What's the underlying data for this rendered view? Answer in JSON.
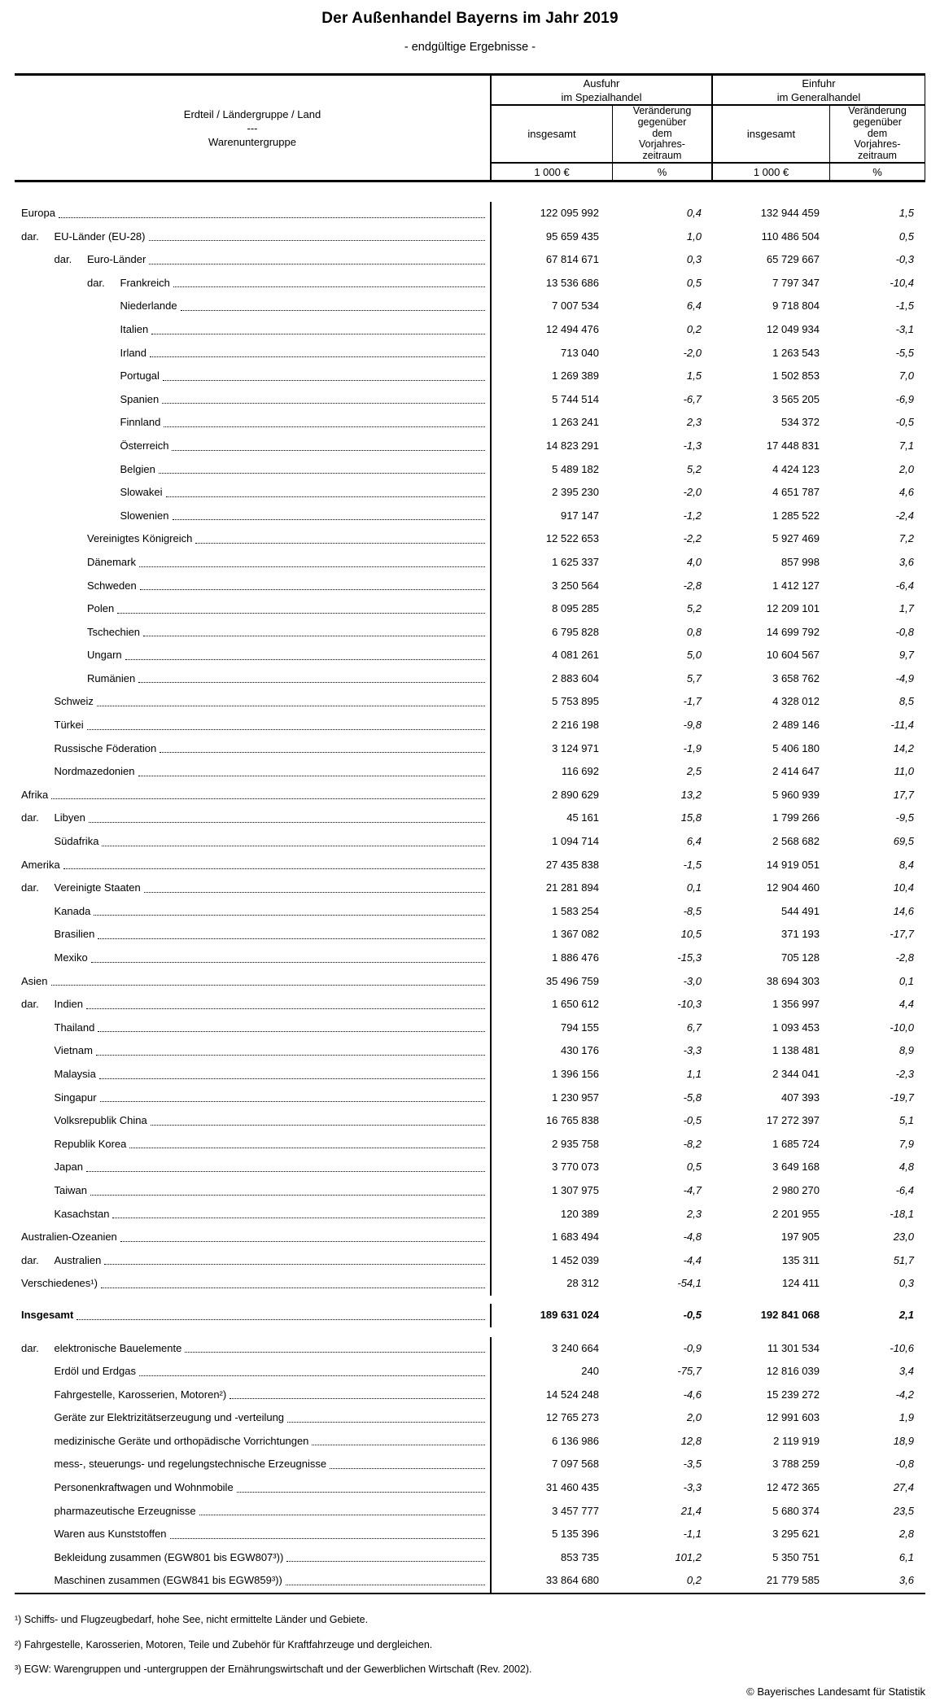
{
  "title": "Der Außenhandel Bayerns im Jahr 2019",
  "subtitle": "- endgültige Ergebnisse -",
  "table": {
    "row_header": [
      "Erdteil / Ländergruppe / Land",
      "---",
      "Warenuntergruppe"
    ],
    "col_groups": [
      {
        "label": [
          "Ausfuhr",
          "im Spezialhandel"
        ]
      },
      {
        "label": [
          "Einfuhr",
          "im Generalhandel"
        ]
      }
    ],
    "sub_headers": [
      "insgesamt",
      [
        "Veränderung",
        "gegenüber",
        "dem",
        "Vorjahres-",
        "zeitraum"
      ],
      "insgesamt",
      [
        "Veränderung",
        "gegenüber",
        "dem",
        "Vorjahres-",
        "zeitraum"
      ]
    ],
    "units": [
      "1 000 €",
      "%",
      "1 000 €",
      "%"
    ],
    "sections": [
      {
        "name": "regions",
        "rows": [
          {
            "label": "Europa",
            "level": 0,
            "dar": false,
            "values": [
              "122 095 992",
              "0,4",
              "132 944 459",
              "1,5"
            ]
          },
          {
            "label": "EU-Länder (EU-28)",
            "level": 1,
            "dar": true,
            "values": [
              "95 659 435",
              "1,0",
              "110 486 504",
              "0,5"
            ]
          },
          {
            "label": "Euro-Länder",
            "level": 2,
            "dar": true,
            "values": [
              "67 814 671",
              "0,3",
              "65 729 667",
              "-0,3"
            ]
          },
          {
            "label": "Frankreich",
            "level": 3,
            "dar": true,
            "values": [
              "13 536 686",
              "0,5",
              "7 797 347",
              "-10,4"
            ]
          },
          {
            "label": "Niederlande",
            "level": 3,
            "dar": false,
            "values": [
              "7 007 534",
              "6,4",
              "9 718 804",
              "-1,5"
            ]
          },
          {
            "label": "Italien",
            "level": 3,
            "dar": false,
            "values": [
              "12 494 476",
              "0,2",
              "12 049 934",
              "-3,1"
            ]
          },
          {
            "label": "Irland",
            "level": 3,
            "dar": false,
            "values": [
              "713 040",
              "-2,0",
              "1 263 543",
              "-5,5"
            ]
          },
          {
            "label": "Portugal",
            "level": 3,
            "dar": false,
            "values": [
              "1 269 389",
              "1,5",
              "1 502 853",
              "7,0"
            ]
          },
          {
            "label": "Spanien",
            "level": 3,
            "dar": false,
            "values": [
              "5 744 514",
              "-6,7",
              "3 565 205",
              "-6,9"
            ]
          },
          {
            "label": "Finnland",
            "level": 3,
            "dar": false,
            "values": [
              "1 263 241",
              "2,3",
              "534 372",
              "-0,5"
            ]
          },
          {
            "label": "Österreich",
            "level": 3,
            "dar": false,
            "values": [
              "14 823 291",
              "-1,3",
              "17 448 831",
              "7,1"
            ]
          },
          {
            "label": "Belgien",
            "level": 3,
            "dar": false,
            "values": [
              "5 489 182",
              "5,2",
              "4 424 123",
              "2,0"
            ]
          },
          {
            "label": "Slowakei",
            "level": 3,
            "dar": false,
            "values": [
              "2 395 230",
              "-2,0",
              "4 651 787",
              "4,6"
            ]
          },
          {
            "label": "Slowenien",
            "level": 3,
            "dar": false,
            "values": [
              "917 147",
              "-1,2",
              "1 285 522",
              "-2,4"
            ]
          },
          {
            "label": "Vereinigtes Königreich",
            "level": 2,
            "dar": false,
            "values": [
              "12 522 653",
              "-2,2",
              "5 927 469",
              "7,2"
            ]
          },
          {
            "label": "Dänemark",
            "level": 2,
            "dar": false,
            "values": [
              "1 625 337",
              "4,0",
              "857 998",
              "3,6"
            ]
          },
          {
            "label": "Schweden",
            "level": 2,
            "dar": false,
            "values": [
              "3 250 564",
              "-2,8",
              "1 412 127",
              "-6,4"
            ]
          },
          {
            "label": "Polen",
            "level": 2,
            "dar": false,
            "values": [
              "8 095 285",
              "5,2",
              "12 209 101",
              "1,7"
            ]
          },
          {
            "label": "Tschechien",
            "level": 2,
            "dar": false,
            "values": [
              "6 795 828",
              "0,8",
              "14 699 792",
              "-0,8"
            ]
          },
          {
            "label": "Ungarn",
            "level": 2,
            "dar": false,
            "values": [
              "4 081 261",
              "5,0",
              "10 604 567",
              "9,7"
            ]
          },
          {
            "label": "Rumänien",
            "level": 2,
            "dar": false,
            "values": [
              "2 883 604",
              "5,7",
              "3 658 762",
              "-4,9"
            ]
          },
          {
            "label": "Schweiz",
            "level": 1,
            "dar": false,
            "values": [
              "5 753 895",
              "-1,7",
              "4 328 012",
              "8,5"
            ]
          },
          {
            "label": "Türkei",
            "level": 1,
            "dar": false,
            "values": [
              "2 216 198",
              "-9,8",
              "2 489 146",
              "-11,4"
            ]
          },
          {
            "label": "Russische Föderation",
            "level": 1,
            "dar": false,
            "values": [
              "3 124 971",
              "-1,9",
              "5 406 180",
              "14,2"
            ]
          },
          {
            "label": "Nordmazedonien",
            "level": 1,
            "dar": false,
            "values": [
              "116 692",
              "2,5",
              "2 414 647",
              "11,0"
            ]
          },
          {
            "label": "Afrika",
            "level": 0,
            "dar": false,
            "values": [
              "2 890 629",
              "13,2",
              "5 960 939",
              "17,7"
            ]
          },
          {
            "label": "Libyen",
            "level": 1,
            "dar": true,
            "values": [
              "45 161",
              "15,8",
              "1 799 266",
              "-9,5"
            ]
          },
          {
            "label": "Südafrika",
            "level": 1,
            "dar": false,
            "values": [
              "1 094 714",
              "6,4",
              "2 568 682",
              "69,5"
            ]
          },
          {
            "label": "Amerika",
            "level": 0,
            "dar": false,
            "values": [
              "27 435 838",
              "-1,5",
              "14 919 051",
              "8,4"
            ]
          },
          {
            "label": "Vereinigte Staaten",
            "level": 1,
            "dar": true,
            "values": [
              "21 281 894",
              "0,1",
              "12 904 460",
              "10,4"
            ]
          },
          {
            "label": "Kanada",
            "level": 1,
            "dar": false,
            "values": [
              "1 583 254",
              "-8,5",
              "544 491",
              "14,6"
            ]
          },
          {
            "label": "Brasilien",
            "level": 1,
            "dar": false,
            "values": [
              "1 367 082",
              "10,5",
              "371 193",
              "-17,7"
            ]
          },
          {
            "label": "Mexiko",
            "level": 1,
            "dar": false,
            "values": [
              "1 886 476",
              "-15,3",
              "705 128",
              "-2,8"
            ]
          },
          {
            "label": "Asien",
            "level": 0,
            "dar": false,
            "values": [
              "35 496 759",
              "-3,0",
              "38 694 303",
              "0,1"
            ]
          },
          {
            "label": "Indien",
            "level": 1,
            "dar": true,
            "values": [
              "1 650 612",
              "-10,3",
              "1 356 997",
              "4,4"
            ]
          },
          {
            "label": "Thailand",
            "level": 1,
            "dar": false,
            "values": [
              "794 155",
              "6,7",
              "1 093 453",
              "-10,0"
            ]
          },
          {
            "label": "Vietnam",
            "level": 1,
            "dar": false,
            "values": [
              "430 176",
              "-3,3",
              "1 138 481",
              "8,9"
            ]
          },
          {
            "label": "Malaysia",
            "level": 1,
            "dar": false,
            "values": [
              "1 396 156",
              "1,1",
              "2 344 041",
              "-2,3"
            ]
          },
          {
            "label": "Singapur",
            "level": 1,
            "dar": false,
            "values": [
              "1 230 957",
              "-5,8",
              "407 393",
              "-19,7"
            ]
          },
          {
            "label": "Volksrepublik China",
            "level": 1,
            "dar": false,
            "values": [
              "16 765 838",
              "-0,5",
              "17 272 397",
              "5,1"
            ]
          },
          {
            "label": "Republik Korea",
            "level": 1,
            "dar": false,
            "values": [
              "2 935 758",
              "-8,2",
              "1 685 724",
              "7,9"
            ]
          },
          {
            "label": "Japan",
            "level": 1,
            "dar": false,
            "values": [
              "3 770 073",
              "0,5",
              "3 649 168",
              "4,8"
            ]
          },
          {
            "label": "Taiwan",
            "level": 1,
            "dar": false,
            "values": [
              "1 307 975",
              "-4,7",
              "2 980 270",
              "-6,4"
            ]
          },
          {
            "label": "Kasachstan",
            "level": 1,
            "dar": false,
            "values": [
              "120 389",
              "2,3",
              "2 201 955",
              "-18,1"
            ]
          },
          {
            "label": "Australien-Ozeanien",
            "level": 0,
            "dar": false,
            "values": [
              "1 683 494",
              "-4,8",
              "197 905",
              "23,0"
            ]
          },
          {
            "label": "Australien",
            "level": 1,
            "dar": true,
            "values": [
              "1 452 039",
              "-4,4",
              "135 311",
              "51,7"
            ]
          },
          {
            "label": "Verschiedenes¹)",
            "level": 0,
            "dar": false,
            "values": [
              "28 312",
              "-54,1",
              "124 411",
              "0,3"
            ]
          }
        ]
      },
      {
        "name": "total",
        "rows": [
          {
            "label": "Insgesamt",
            "level": 0,
            "dar": false,
            "bold": true,
            "values": [
              "189 631 024",
              "-0,5",
              "192 841 068",
              "2,1"
            ]
          }
        ]
      },
      {
        "name": "goods",
        "rows": [
          {
            "label": "elektronische Bauelemente",
            "level": 1,
            "dar": true,
            "values": [
              "3 240 664",
              "-0,9",
              "11 301 534",
              "-10,6"
            ]
          },
          {
            "label": "Erdöl und Erdgas",
            "level": 1,
            "dar": false,
            "values": [
              "240",
              "-75,7",
              "12 816 039",
              "3,4"
            ]
          },
          {
            "label": "Fahrgestelle, Karosserien, Motoren²)",
            "level": 1,
            "dar": false,
            "values": [
              "14 524 248",
              "-4,6",
              "15 239 272",
              "-4,2"
            ]
          },
          {
            "label": "Geräte zur Elektrizitätserzeugung und -verteilung",
            "level": 1,
            "dar": false,
            "values": [
              "12 765 273",
              "2,0",
              "12 991 603",
              "1,9"
            ]
          },
          {
            "label": "medizinische Geräte und orthopädische Vorrichtungen",
            "level": 1,
            "dar": false,
            "values": [
              "6 136 986",
              "12,8",
              "2 119 919",
              "18,9"
            ]
          },
          {
            "label": "mess-, steuerungs- und regelungstechnische Erzeugnisse",
            "level": 1,
            "dar": false,
            "values": [
              "7 097 568",
              "-3,5",
              "3 788 259",
              "-0,8"
            ]
          },
          {
            "label": "Personenkraftwagen und Wohnmobile",
            "level": 1,
            "dar": false,
            "values": [
              "31 460 435",
              "-3,3",
              "12 472 365",
              "27,4"
            ]
          },
          {
            "label": "pharmazeutische Erzeugnisse",
            "level": 1,
            "dar": false,
            "values": [
              "3 457 777",
              "21,4",
              "5 680 374",
              "23,5"
            ]
          },
          {
            "label": "Waren aus Kunststoffen",
            "level": 1,
            "dar": false,
            "values": [
              "5 135 396",
              "-1,1",
              "3 295 621",
              "2,8"
            ]
          },
          {
            "label": "Bekleidung zusammen (EGW801 bis EGW807³))",
            "level": 1,
            "dar": false,
            "values": [
              "853 735",
              "101,2",
              "5 350 751",
              "6,1"
            ]
          },
          {
            "label": "Maschinen zusammen (EGW841 bis EGW859³))",
            "level": 1,
            "dar": false,
            "values": [
              "33 864 680",
              "0,2",
              "21 779 585",
              "3,6"
            ]
          }
        ]
      }
    ]
  },
  "footnotes": [
    "¹) Schiffs- und Flugzeugbedarf, hohe See, nicht ermittelte Länder und Gebiete.",
    "²) Fahrgestelle, Karosserien, Motoren, Teile und Zubehör für Kraftfahrzeuge und dergleichen.",
    "³) EGW: Warengruppen und -untergruppen der Ernährungswirtschaft und der Gewerblichen Wirtschaft (Rev. 2002)."
  ],
  "copyright": "© Bayerisches Landesamt für Statistik"
}
